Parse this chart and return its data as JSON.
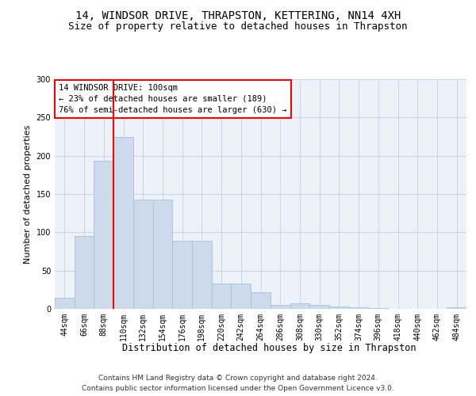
{
  "title1": "14, WINDSOR DRIVE, THRAPSTON, KETTERING, NN14 4XH",
  "title2": "Size of property relative to detached houses in Thrapston",
  "xlabel": "Distribution of detached houses by size in Thrapston",
  "ylabel": "Number of detached properties",
  "bar_labels": [
    "44sqm",
    "66sqm",
    "88sqm",
    "110sqm",
    "132sqm",
    "154sqm",
    "176sqm",
    "198sqm",
    "220sqm",
    "242sqm",
    "264sqm",
    "286sqm",
    "308sqm",
    "330sqm",
    "352sqm",
    "374sqm",
    "396sqm",
    "418sqm",
    "440sqm",
    "462sqm",
    "484sqm"
  ],
  "bar_values": [
    15,
    95,
    193,
    224,
    143,
    143,
    89,
    89,
    33,
    33,
    22,
    5,
    7,
    5,
    3,
    2,
    1,
    0,
    0,
    0,
    2
  ],
  "bar_color": "#ccdaeb",
  "bar_edge_color": "#aabfd8",
  "vline_x": 2.5,
  "vline_color": "red",
  "annotation_text": "14 WINDSOR DRIVE: 100sqm\n← 23% of detached houses are smaller (189)\n76% of semi-detached houses are larger (630) →",
  "annotation_box_color": "white",
  "annotation_box_edge_color": "red",
  "ylim": [
    0,
    300
  ],
  "yticks": [
    0,
    50,
    100,
    150,
    200,
    250,
    300
  ],
  "grid_color": "#c8d4e4",
  "background_color": "#edf2f9",
  "footnote1": "Contains HM Land Registry data © Crown copyright and database right 2024.",
  "footnote2": "Contains public sector information licensed under the Open Government Licence v3.0.",
  "title1_fontsize": 10,
  "title2_fontsize": 9,
  "xlabel_fontsize": 8.5,
  "ylabel_fontsize": 8,
  "tick_fontsize": 7,
  "annotation_fontsize": 7.5,
  "footnote_fontsize": 6.5
}
